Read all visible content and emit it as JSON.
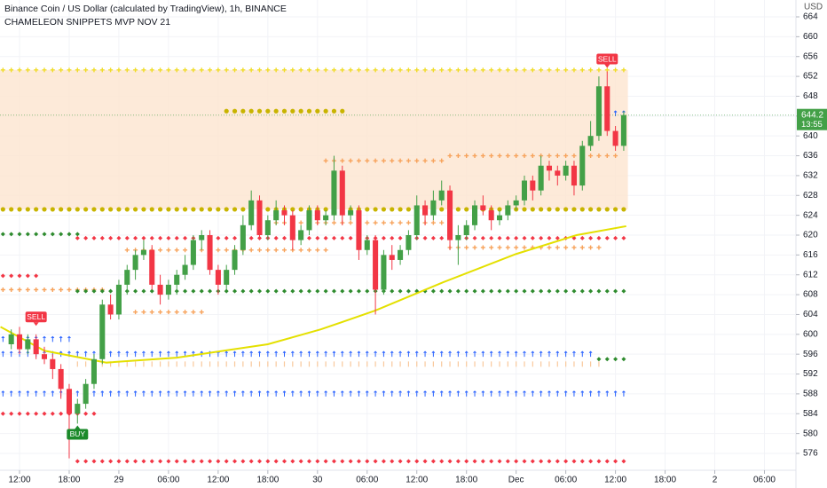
{
  "chart_data": {
    "type": "candlestick",
    "title": "Binance Coin / US Dollar (calculated by TradingView), 1h, BINANCE",
    "subtitle": "CHAMELEON SNIPPETS MVP NOV 21",
    "currency": "USD",
    "x": [
      -1,
      0,
      1,
      2,
      3,
      4,
      5,
      6,
      7,
      8,
      9,
      10,
      11,
      12,
      13,
      14,
      15,
      16,
      17,
      18,
      19,
      20,
      21,
      22,
      23,
      24,
      25,
      26,
      27,
      28,
      29,
      30,
      31,
      32,
      33,
      34,
      35,
      36,
      37,
      38,
      39,
      40,
      41,
      42,
      43,
      44,
      45,
      46,
      47,
      48,
      49,
      50,
      51,
      52,
      53,
      54,
      55,
      56,
      57,
      58,
      59,
      60,
      61,
      62,
      63,
      64,
      65,
      66,
      67,
      68,
      69,
      70,
      71,
      72,
      73
    ],
    "open": [
      598,
      600,
      597,
      599,
      596,
      595,
      593,
      589,
      584,
      586,
      590,
      595,
      606,
      604,
      610,
      613,
      616,
      617,
      610,
      608,
      610,
      612,
      614,
      619,
      620,
      613,
      610,
      613,
      617,
      622,
      627,
      620,
      623,
      625,
      624,
      619,
      621,
      625,
      623,
      624,
      633,
      624,
      625,
      617,
      619,
      609,
      616,
      615,
      617,
      620,
      626,
      624,
      627,
      629,
      619,
      620,
      622,
      626,
      625,
      623,
      624,
      626,
      627,
      631,
      629,
      634,
      633,
      632,
      634,
      630,
      638,
      640,
      650,
      641,
      638
    ],
    "high": [
      601,
      601.5,
      600,
      600,
      597.5,
      596,
      594,
      590,
      587,
      591,
      596,
      607,
      608,
      611,
      614,
      617,
      619,
      618,
      612,
      611,
      613,
      616,
      620,
      621,
      621,
      614,
      614,
      618,
      624,
      629,
      628,
      624,
      627,
      626,
      625,
      622,
      626,
      626,
      625,
      636,
      634,
      626,
      626,
      620,
      620,
      617,
      618,
      618,
      621,
      628,
      627,
      629,
      631,
      630,
      622,
      623,
      627,
      628,
      626,
      625,
      627,
      628,
      632,
      632,
      636,
      635,
      634,
      635,
      635,
      639,
      643,
      652,
      653,
      642,
      645
    ],
    "low": [
      597,
      596,
      596,
      595,
      594,
      591,
      587,
      575,
      582,
      585,
      589,
      594,
      603,
      603,
      608,
      611,
      615,
      609,
      606,
      607,
      608,
      611,
      613,
      617,
      612,
      608,
      609,
      612,
      616,
      621,
      619,
      619,
      622,
      622,
      617,
      618,
      620,
      622,
      622,
      623,
      622,
      623,
      615,
      616,
      604,
      608,
      613,
      614,
      616,
      619,
      622,
      623,
      626,
      617,
      614,
      619,
      621,
      624,
      621,
      622,
      623,
      625,
      626,
      627,
      628,
      631,
      630,
      631,
      628,
      629,
      637,
      639,
      640,
      637,
      637
    ],
    "close": [
      600,
      597,
      599,
      596,
      595,
      593,
      589,
      584,
      586,
      590,
      595,
      606,
      604,
      610,
      613,
      616,
      617,
      610,
      608,
      610,
      612,
      614,
      619,
      620,
      613,
      610,
      613,
      617,
      622,
      627,
      620,
      623,
      625,
      624,
      619,
      621,
      625,
      623,
      624,
      633,
      624,
      625,
      617,
      619,
      609,
      616,
      615,
      617,
      620,
      626,
      624,
      627,
      629,
      619,
      620,
      622,
      626,
      625,
      623,
      624,
      626,
      627,
      631,
      629,
      634,
      633,
      632,
      634,
      630,
      638,
      640,
      650,
      641,
      638,
      644.2
    ],
    "up_color": "#43a047",
    "down_color": "#f23645",
    "xlim": [
      -2.36,
      93.7
    ],
    "xticks": [
      {
        "value": 0,
        "label": "12:00"
      },
      {
        "value": 6,
        "label": "18:00"
      },
      {
        "value": 12,
        "label": "29"
      },
      {
        "value": 18,
        "label": "06:00"
      },
      {
        "value": 24,
        "label": "12:00"
      },
      {
        "value": 30,
        "label": "18:00"
      },
      {
        "value": 36,
        "label": "30"
      },
      {
        "value": 42,
        "label": "06:00"
      },
      {
        "value": 48,
        "label": "12:00"
      },
      {
        "value": 54,
        "label": "18:00"
      },
      {
        "value": 60,
        "label": "Dec"
      },
      {
        "value": 66,
        "label": "06:00"
      },
      {
        "value": 72,
        "label": "12:00"
      },
      {
        "value": 78,
        "label": "18:00"
      },
      {
        "value": 84,
        "label": "2"
      },
      {
        "value": 90,
        "label": "06:00"
      }
    ],
    "ylim": [
      572.6,
      667.4
    ],
    "yticks": [
      576,
      580,
      584,
      588,
      592,
      596,
      600,
      604,
      608,
      612,
      616,
      620,
      624,
      628,
      632,
      636,
      640,
      644,
      648,
      652,
      656,
      660,
      664
    ],
    "grid": true,
    "band": {
      "low": 625.2,
      "high": 653.3,
      "from": -2.36,
      "to": 73.5,
      "color": "#fde5cf"
    },
    "sma": {
      "x": [
        -2.3,
        3,
        10.5,
        19,
        30,
        36.4,
        43,
        51.2,
        60,
        67.3,
        73.3
      ],
      "values": [
        601.5,
        596.7,
        594.3,
        595.3,
        598,
        601,
        604.8,
        610.5,
        616.2,
        620,
        621.8
      ],
      "color": "#e4e000"
    },
    "levels": [
      {
        "value": 653.3,
        "from": -2,
        "to": 73,
        "color": "#f0dc28",
        "marker": "plus"
      },
      {
        "value": 625.2,
        "from": -2,
        "to": 73,
        "color": "#c8b400",
        "marker": "dot"
      },
      {
        "value": 645,
        "from": 25,
        "to": 39,
        "color": "#c8b400",
        "marker": "dot"
      },
      {
        "value": 635,
        "from": 37,
        "to": 51,
        "color": "#f7a35c",
        "marker": "plus"
      },
      {
        "value": 636,
        "from": 52,
        "to": 72,
        "color": "#f7a35c",
        "marker": "plus"
      },
      {
        "value": 622.5,
        "from": 30,
        "to": 51,
        "color": "#f7a35c",
        "marker": "plus"
      },
      {
        "value": 617,
        "from": 13,
        "to": 37,
        "color": "#f7a35c",
        "marker": "plus"
      },
      {
        "value": 617.5,
        "from": 52,
        "to": 70,
        "color": "#f7a35c",
        "marker": "plus"
      },
      {
        "value": 609,
        "from": -2,
        "to": 10,
        "color": "#f7a35c",
        "marker": "plus"
      },
      {
        "value": 604.5,
        "from": 14,
        "to": 22,
        "color": "#f7a35c",
        "marker": "plus"
      },
      {
        "value": 619.4,
        "from": 7,
        "to": 73,
        "color": "#f23645",
        "marker": "diamond"
      },
      {
        "value": 584,
        "from": -2,
        "to": 9,
        "color": "#f23645",
        "marker": "diamond"
      },
      {
        "value": 574.4,
        "from": 7,
        "to": 73,
        "color": "#f23645",
        "marker": "diamond"
      },
      {
        "value": 611.8,
        "from": -2,
        "to": 2,
        "color": "#f23645",
        "marker": "diamond"
      },
      {
        "value": 620.2,
        "from": -2,
        "to": 7,
        "color": "#2e8b2e",
        "marker": "diamond"
      },
      {
        "value": 608.7,
        "from": 7,
        "to": 73,
        "color": "#2e8b2e",
        "marker": "diamond"
      },
      {
        "value": 595,
        "from": 70,
        "to": 73,
        "color": "#2e8b2e",
        "marker": "diamond"
      },
      {
        "value": 596,
        "from": -2,
        "to": 69,
        "color": "#2962ff",
        "marker": "arrow"
      },
      {
        "value": 588,
        "from": -2,
        "to": 73,
        "color": "#2962ff",
        "marker": "arrow"
      },
      {
        "value": 599,
        "from": -2,
        "to": 6,
        "color": "#2962ff",
        "marker": "arrow"
      },
      {
        "value": 644.5,
        "from": 70,
        "to": 73,
        "color": "#2962ff",
        "marker": "arrow"
      },
      {
        "value": 594,
        "from": 7,
        "to": 70,
        "color": "#f9c89b",
        "marker": "tick"
      }
    ],
    "annotations": [
      {
        "label": "SELL",
        "x": 2,
        "y": 601,
        "color": "#f23645",
        "side": "above"
      },
      {
        "label": "SELL",
        "x": 71,
        "y": 653,
        "color": "#f23645",
        "side": "above"
      },
      {
        "label": "BUY",
        "x": 7,
        "y": 582,
        "color": "#1b8a2a",
        "side": "below"
      }
    ],
    "last_price": 644.2,
    "countdown": "13:55",
    "last_color": "#43a047"
  }
}
